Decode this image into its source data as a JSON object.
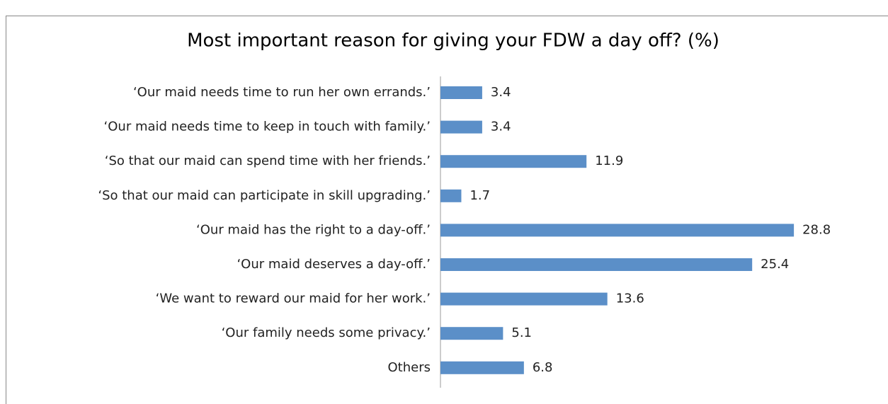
{
  "chart_data": {
    "type": "barh",
    "title": "Most important reason for giving your FDW a day off? (%)",
    "categories": [
      "‘Our maid needs time to run her own errands.’",
      "‘Our maid needs time to keep in touch with family.’",
      "‘So that our maid can spend time with her friends.’",
      "‘So that our maid can participate in skill upgrading.’",
      "‘Our maid has the right to a day-off.’",
      "‘Our maid deserves a day-off.’",
      "‘We want to reward our maid for her work.’",
      "‘Our family needs some privacy.’",
      "Others"
    ],
    "values": [
      3.4,
      3.4,
      11.9,
      1.7,
      28.8,
      25.4,
      13.6,
      5.1,
      6.8
    ],
    "color": "#5b8fc8"
  }
}
